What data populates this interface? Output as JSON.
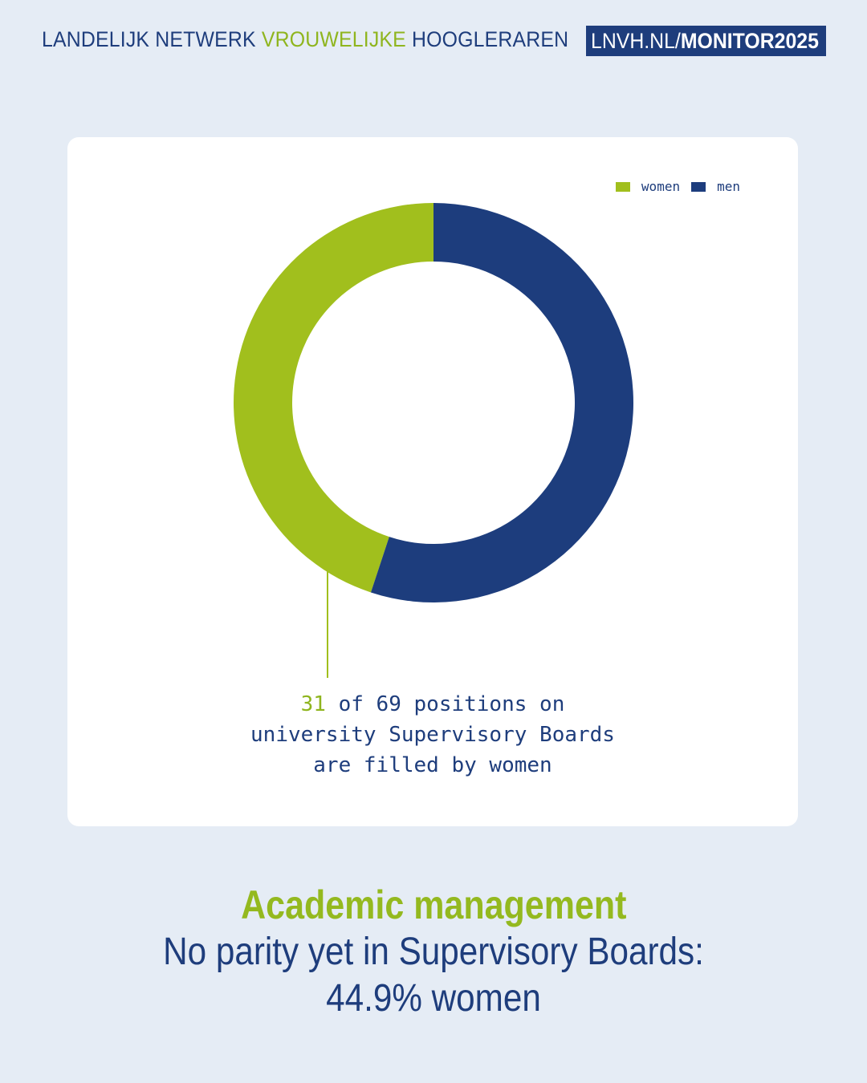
{
  "header": {
    "org_part1": "LANDELIJK NETWERK ",
    "org_part2": "VROUWELIJKE",
    "org_part3": " HOOGLERAREN",
    "url_part1": "LNVH.NL/",
    "url_part2": "MONITOR2025"
  },
  "colors": {
    "women": "#a1bf1d",
    "men": "#1d3d7d",
    "accent": "#8fb51e",
    "navy": "#1e3d7c"
  },
  "chart_data": {
    "type": "pie",
    "variant": "donut",
    "categories": [
      "women",
      "men"
    ],
    "values": [
      31,
      38
    ],
    "legend": {
      "placement": "top-right",
      "entries": [
        "women",
        "men"
      ]
    },
    "annotation": {
      "highlight": "31",
      "line1_rest": " of 69 positions on",
      "line2": "university Supervisory Boards",
      "line3": "are filled by women"
    }
  },
  "caption": {
    "title": "Academic management",
    "line1": "No parity yet in Supervisory Boards:",
    "line2": "44.9% women"
  }
}
